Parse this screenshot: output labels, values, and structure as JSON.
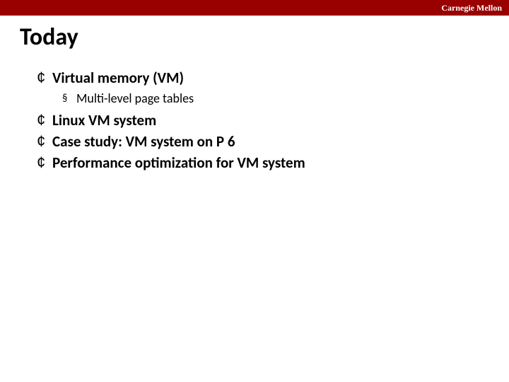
{
  "colors": {
    "topbar_bg": "#990000",
    "topbar_text": "#ffffff",
    "slide_bg": "#ffffff",
    "title_text": "#000000",
    "body_text": "#000000"
  },
  "header": {
    "brand": "Carnegie Mellon"
  },
  "title": "Today",
  "bullet_chars": {
    "l1": "¢",
    "l2": "§"
  },
  "items": [
    {
      "text": "Virtual memory (VM)",
      "sub": [
        "Multi-level page tables"
      ]
    },
    {
      "text": "Linux VM system"
    },
    {
      "text": "Case study: VM system on P 6"
    },
    {
      "text": "Performance optimization for VM system"
    }
  ]
}
